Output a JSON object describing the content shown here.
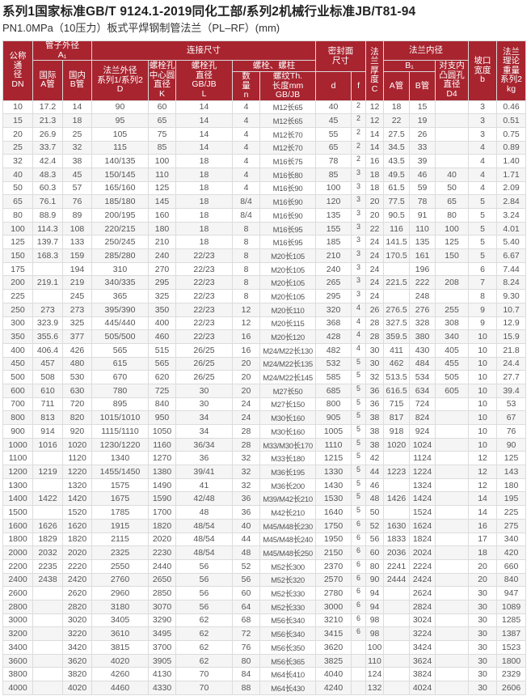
{
  "title": "系列1国家标准GB/T 9124.1-2019同化工部/系列2机械行业标准JB/T81-94",
  "subtitle": "PN1.0MPa（10压力）板式平焊钢制管法兰（PL–RF）(mm)",
  "header_color": "#a8242f",
  "headers": {
    "dn": "公称\n通\n径\nDN",
    "pipe_od": "管子外径\nA₁",
    "pipe_a": "国际\nA管",
    "pipe_b": "国内\nB管",
    "connection": "连接尺寸",
    "flange_od": "法兰外径\n系列1/系列2\nD",
    "bolt_circle": "螺栓孔\n中心圆\n直径\nK",
    "bolt_hole": "螺栓孔\n直径\nGB/JB\nL",
    "bolts": "螺栓、螺柱",
    "bolt_qty": "数\n量\nn",
    "thread": "螺纹Th.\n长度mm\nGB/JB",
    "seal": "密封面\n尺寸",
    "seal_d": "d",
    "seal_f": "f",
    "thickness": "法\n兰\n厚\n度\nC",
    "bore": "法兰内径",
    "bore_b1": "B₁",
    "bore_a": "A管",
    "bore_b": "B管",
    "d4": "对支内\n凸圆孔\n直径\nD4",
    "bevel": "坡口\n宽度\nb",
    "weight": "法兰\n理论\n重量\n系列2\nkg"
  },
  "columns": [
    "DN",
    "A",
    "B",
    "D",
    "K",
    "L",
    "n",
    "Th",
    "d",
    "f",
    "C",
    "B1_A",
    "B1_B",
    "D4",
    "b",
    "kg"
  ],
  "rows": [
    [
      "10",
      "17.2",
      "14",
      "90",
      "60",
      "14",
      "4",
      "M12长65",
      "40",
      "2",
      "12",
      "18",
      "15",
      "",
      "3",
      "0.46"
    ],
    [
      "15",
      "21.3",
      "18",
      "95",
      "65",
      "14",
      "4",
      "M12长65",
      "45",
      "2",
      "12",
      "22",
      "19",
      "",
      "3",
      "0.51"
    ],
    [
      "20",
      "26.9",
      "25",
      "105",
      "75",
      "14",
      "4",
      "M12长70",
      "55",
      "2",
      "14",
      "27.5",
      "26",
      "",
      "3",
      "0.75"
    ],
    [
      "25",
      "33.7",
      "32",
      "115",
      "85",
      "14",
      "4",
      "M12长70",
      "65",
      "2",
      "14",
      "34.5",
      "33",
      "",
      "4",
      "0.89"
    ],
    [
      "32",
      "42.4",
      "38",
      "140/135",
      "100",
      "18",
      "4",
      "M16长75",
      "78",
      "2",
      "16",
      "43.5",
      "39",
      "",
      "4",
      "1.40"
    ],
    [
      "40",
      "48.3",
      "45",
      "150/145",
      "110",
      "18",
      "4",
      "M16长80",
      "85",
      "3",
      "18",
      "49.5",
      "46",
      "40",
      "4",
      "1.71"
    ],
    [
      "50",
      "60.3",
      "57",
      "165/160",
      "125",
      "18",
      "4",
      "M16长90",
      "100",
      "3",
      "18",
      "61.5",
      "59",
      "50",
      "4",
      "2.09"
    ],
    [
      "65",
      "76.1",
      "76",
      "185/180",
      "145",
      "18",
      "8/4",
      "M16长90",
      "120",
      "3",
      "20",
      "77.5",
      "78",
      "65",
      "5",
      "2.84"
    ],
    [
      "80",
      "88.9",
      "89",
      "200/195",
      "160",
      "18",
      "8/4",
      "M16长90",
      "135",
      "3",
      "20",
      "90.5",
      "91",
      "80",
      "5",
      "3.24"
    ],
    [
      "100",
      "114.3",
      "108",
      "220/215",
      "180",
      "18",
      "8",
      "M16长95",
      "155",
      "3",
      "22",
      "116",
      "110",
      "100",
      "5",
      "4.01"
    ],
    [
      "125",
      "139.7",
      "133",
      "250/245",
      "210",
      "18",
      "8",
      "M16长95",
      "185",
      "3",
      "24",
      "141.5",
      "135",
      "125",
      "5",
      "5.40"
    ],
    [
      "150",
      "168.3",
      "159",
      "285/280",
      "240",
      "22/23",
      "8",
      "M20长105",
      "210",
      "3",
      "24",
      "170.5",
      "161",
      "150",
      "5",
      "6.67"
    ],
    [
      "175",
      "",
      "194",
      "310",
      "270",
      "22/23",
      "8",
      "M20长105",
      "240",
      "3",
      "24",
      "",
      "196",
      "",
      "6",
      "7.44"
    ],
    [
      "200",
      "219.1",
      "219",
      "340/335",
      "295",
      "22/23",
      "8",
      "M20长105",
      "265",
      "3",
      "24",
      "221.5",
      "222",
      "208",
      "7",
      "8.24"
    ],
    [
      "225",
      "",
      "245",
      "365",
      "325",
      "22/23",
      "8",
      "M20长105",
      "295",
      "3",
      "24",
      "",
      "248",
      "",
      "8",
      "9.30"
    ],
    [
      "250",
      "273",
      "273",
      "395/390",
      "350",
      "22/23",
      "12",
      "M20长110",
      "320",
      "4",
      "26",
      "276.5",
      "276",
      "255",
      "9",
      "10.7"
    ],
    [
      "300",
      "323.9",
      "325",
      "445/440",
      "400",
      "22/23",
      "12",
      "M20长115",
      "368",
      "4",
      "28",
      "327.5",
      "328",
      "308",
      "9",
      "12.9"
    ],
    [
      "350",
      "355.6",
      "377",
      "505/500",
      "460",
      "22/23",
      "16",
      "M20长120",
      "428",
      "4",
      "28",
      "359.5",
      "380",
      "340",
      "10",
      "15.9"
    ],
    [
      "400",
      "406.4",
      "426",
      "565",
      "515",
      "26/25",
      "16",
      "M24/M22长130",
      "482",
      "4",
      "30",
      "411",
      "430",
      "405",
      "10",
      "21.8"
    ],
    [
      "450",
      "457",
      "480",
      "615",
      "565",
      "26/25",
      "20",
      "M24/M22长135",
      "532",
      "5",
      "30",
      "462",
      "484",
      "455",
      "10",
      "24.4"
    ],
    [
      "500",
      "508",
      "530",
      "670",
      "620",
      "26/25",
      "20",
      "M24/M22长145",
      "585",
      "5",
      "32",
      "513.5",
      "534",
      "505",
      "10",
      "27.7"
    ],
    [
      "600",
      "610",
      "630",
      "780",
      "725",
      "30",
      "20",
      "M27长50",
      "685",
      "5",
      "36",
      "616.5",
      "634",
      "605",
      "10",
      "39.4"
    ],
    [
      "700",
      "711",
      "720",
      "895",
      "840",
      "30",
      "24",
      "M27长150",
      "800",
      "5",
      "36",
      "715",
      "724",
      "",
      "10",
      "53"
    ],
    [
      "800",
      "813",
      "820",
      "1015/1010",
      "950",
      "34",
      "24",
      "M30长160",
      "905",
      "5",
      "38",
      "817",
      "824",
      "",
      "10",
      "67"
    ],
    [
      "900",
      "914",
      "920",
      "1115/1110",
      "1050",
      "34",
      "28",
      "M30长160",
      "1005",
      "5",
      "38",
      "918",
      "924",
      "",
      "10",
      "76"
    ],
    [
      "1000",
      "1016",
      "1020",
      "1230/1220",
      "1160",
      "36/34",
      "28",
      "M33/M30长170",
      "1110",
      "5",
      "38",
      "1020",
      "1024",
      "",
      "10",
      "90"
    ],
    [
      "1100",
      "",
      "1120",
      "1340",
      "1270",
      "36",
      "32",
      "M33长180",
      "1215",
      "5",
      "42",
      "",
      "1124",
      "",
      "12",
      "125"
    ],
    [
      "1200",
      "1219",
      "1220",
      "1455/1450",
      "1380",
      "39/41",
      "32",
      "M36长195",
      "1330",
      "5",
      "44",
      "1223",
      "1224",
      "",
      "12",
      "143"
    ],
    [
      "1300",
      "",
      "1320",
      "1575",
      "1490",
      "41",
      "32",
      "M36长200",
      "1430",
      "5",
      "46",
      "",
      "1324",
      "",
      "12",
      "180"
    ],
    [
      "1400",
      "1422",
      "1420",
      "1675",
      "1590",
      "42/48",
      "36",
      "M39/M42长210",
      "1530",
      "5",
      "48",
      "1426",
      "1424",
      "",
      "14",
      "195"
    ],
    [
      "1500",
      "",
      "1520",
      "1785",
      "1700",
      "48",
      "36",
      "M42长210",
      "1640",
      "5",
      "50",
      "",
      "1524",
      "",
      "14",
      "225"
    ],
    [
      "1600",
      "1626",
      "1620",
      "1915",
      "1820",
      "48/54",
      "40",
      "M45/M48长230",
      "1750",
      "6",
      "52",
      "1630",
      "1624",
      "",
      "16",
      "275"
    ],
    [
      "1800",
      "1829",
      "1820",
      "2115",
      "2020",
      "48/54",
      "44",
      "M45/M48长240",
      "1950",
      "6",
      "56",
      "1833",
      "1824",
      "",
      "17",
      "340"
    ],
    [
      "2000",
      "2032",
      "2020",
      "2325",
      "2230",
      "48/54",
      "48",
      "M45/M48长250",
      "2150",
      "6",
      "60",
      "2036",
      "2024",
      "",
      "18",
      "420"
    ],
    [
      "2200",
      "2235",
      "2220",
      "2550",
      "2440",
      "56",
      "52",
      "M52长300",
      "2370",
      "6",
      "80",
      "2241",
      "2224",
      "",
      "20",
      "660"
    ],
    [
      "2400",
      "2438",
      "2420",
      "2760",
      "2650",
      "56",
      "56",
      "M52长320",
      "2570",
      "6",
      "90",
      "2444",
      "2424",
      "",
      "20",
      "840"
    ],
    [
      "2600",
      "",
      "2620",
      "2960",
      "2850",
      "56",
      "60",
      "M52长330",
      "2780",
      "6",
      "94",
      "",
      "2624",
      "",
      "30",
      "947"
    ],
    [
      "2800",
      "",
      "2820",
      "3180",
      "3070",
      "56",
      "64",
      "M52长330",
      "3000",
      "6",
      "94",
      "",
      "2824",
      "",
      "30",
      "1089"
    ],
    [
      "3000",
      "",
      "3020",
      "3405",
      "3290",
      "62",
      "68",
      "M56长340",
      "3210",
      "6",
      "98",
      "",
      "3024",
      "",
      "30",
      "1285"
    ],
    [
      "3200",
      "",
      "3220",
      "3610",
      "3495",
      "62",
      "72",
      "M56长340",
      "3415",
      "6",
      "98",
      "",
      "3224",
      "",
      "30",
      "1387"
    ],
    [
      "3400",
      "",
      "3420",
      "3815",
      "3700",
      "62",
      "76",
      "M56长350",
      "3620",
      "",
      "100",
      "",
      "3424",
      "",
      "30",
      "1523"
    ],
    [
      "3600",
      "",
      "3620",
      "4020",
      "3905",
      "62",
      "80",
      "M56长365",
      "3825",
      "",
      "110",
      "",
      "3624",
      "",
      "30",
      "1800"
    ],
    [
      "3800",
      "",
      "3820",
      "4260",
      "4130",
      "70",
      "84",
      "M64长410",
      "4040",
      "",
      "124",
      "",
      "3824",
      "",
      "30",
      "2329"
    ],
    [
      "4000",
      "",
      "4020",
      "4460",
      "4330",
      "70",
      "88",
      "M64长430",
      "4240",
      "",
      "132",
      "",
      "4024",
      "",
      "30",
      "2606"
    ]
  ]
}
